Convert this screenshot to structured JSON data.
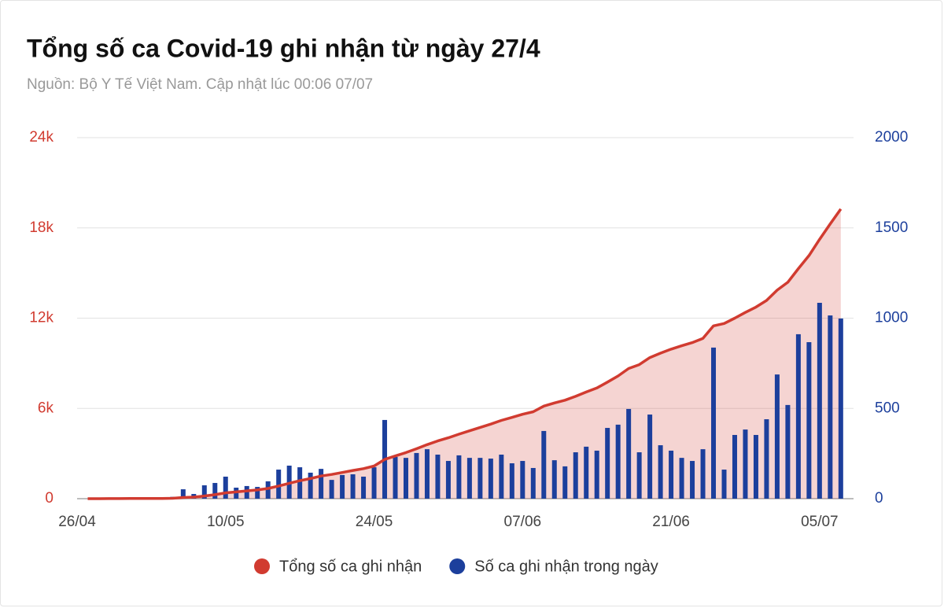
{
  "chart_data": {
    "type": "bar-line",
    "title": "Tổng số ca Covid-19 ghi nhận từ ngày 27/4",
    "subtitle": "Nguồn: Bộ Y Tế Việt Nam. Cập nhật lúc 00:06 07/07",
    "x": [
      "27/04",
      "28/04",
      "29/04",
      "30/04",
      "01/05",
      "02/05",
      "03/05",
      "04/05",
      "05/05",
      "06/05",
      "07/05",
      "08/05",
      "09/05",
      "10/05",
      "11/05",
      "12/05",
      "13/05",
      "14/05",
      "15/05",
      "16/05",
      "17/05",
      "18/05",
      "19/05",
      "20/05",
      "21/05",
      "22/05",
      "23/05",
      "24/05",
      "25/05",
      "26/05",
      "27/05",
      "28/05",
      "29/05",
      "30/05",
      "31/05",
      "01/06",
      "02/06",
      "03/06",
      "04/06",
      "05/06",
      "06/06",
      "07/06",
      "08/06",
      "09/06",
      "10/06",
      "11/06",
      "12/06",
      "13/06",
      "14/06",
      "15/06",
      "16/06",
      "17/06",
      "18/06",
      "19/06",
      "20/06",
      "21/06",
      "22/06",
      "23/06",
      "24/06",
      "25/06",
      "26/06",
      "27/06",
      "28/06",
      "29/06",
      "30/06",
      "01/07",
      "02/07",
      "03/07",
      "04/07",
      "05/07",
      "06/07",
      "07/07"
    ],
    "xticks": [
      "26/04",
      "10/05",
      "24/05",
      "07/06",
      "21/06",
      "05/07"
    ],
    "ylim": [
      0,
      24000
    ],
    "yticks": [
      {
        "value": 0,
        "label": "0"
      },
      {
        "value": 6000,
        "label": "6k"
      },
      {
        "value": 12000,
        "label": "12k"
      },
      {
        "value": 18000,
        "label": "18k"
      },
      {
        "value": 24000,
        "label": "24k"
      }
    ],
    "y2lim": [
      0,
      2000
    ],
    "y2ticks": [
      0,
      500,
      1000,
      1500,
      2000
    ],
    "grid": true,
    "legend": "bottom",
    "series": [
      {
        "name": "Tổng số ca ghi nhận",
        "type": "area-line",
        "color": "#d13b30",
        "axis": "y",
        "values": [
          0,
          2,
          3,
          6,
          8,
          9,
          13,
          16,
          26,
          78,
          104,
          178,
          265,
          387,
          448,
          518,
          583,
          679,
          840,
          1023,
          1197,
          1341,
          1506,
          1610,
          1741,
          1876,
          1998,
          2172,
          2608,
          2839,
          3065,
          3318,
          3592,
          3836,
          4045,
          4285,
          4511,
          4737,
          4959,
          5203,
          5399,
          5608,
          5778,
          6153,
          6366,
          6545,
          6802,
          7090,
          7356,
          7748,
          8158,
          8655,
          8912,
          9378,
          9674,
          9940,
          10166,
          10375,
          10649,
          11486,
          11647,
          12000,
          12383,
          12736,
          13176,
          13864,
          14383,
          15294,
          16161,
          17246,
          18261,
          19259
        ]
      },
      {
        "name": "Số ca ghi nhận trong ngày",
        "type": "bar",
        "color": "#1c3f9c",
        "axis": "y2",
        "values": [
          0,
          2,
          1,
          3,
          2,
          1,
          4,
          3,
          10,
          52,
          26,
          74,
          87,
          122,
          61,
          70,
          65,
          96,
          161,
          183,
          174,
          144,
          165,
          104,
          131,
          135,
          122,
          174,
          436,
          231,
          226,
          253,
          274,
          244,
          209,
          240,
          226,
          226,
          222,
          244,
          196,
          209,
          170,
          375,
          213,
          179,
          257,
          288,
          266,
          392,
          410,
          497,
          257,
          466,
          296,
          266,
          226,
          209,
          274,
          837,
          161,
          353,
          383,
          353,
          440,
          688,
          519,
          911,
          867,
          1085,
          1015,
          998
        ]
      }
    ]
  }
}
